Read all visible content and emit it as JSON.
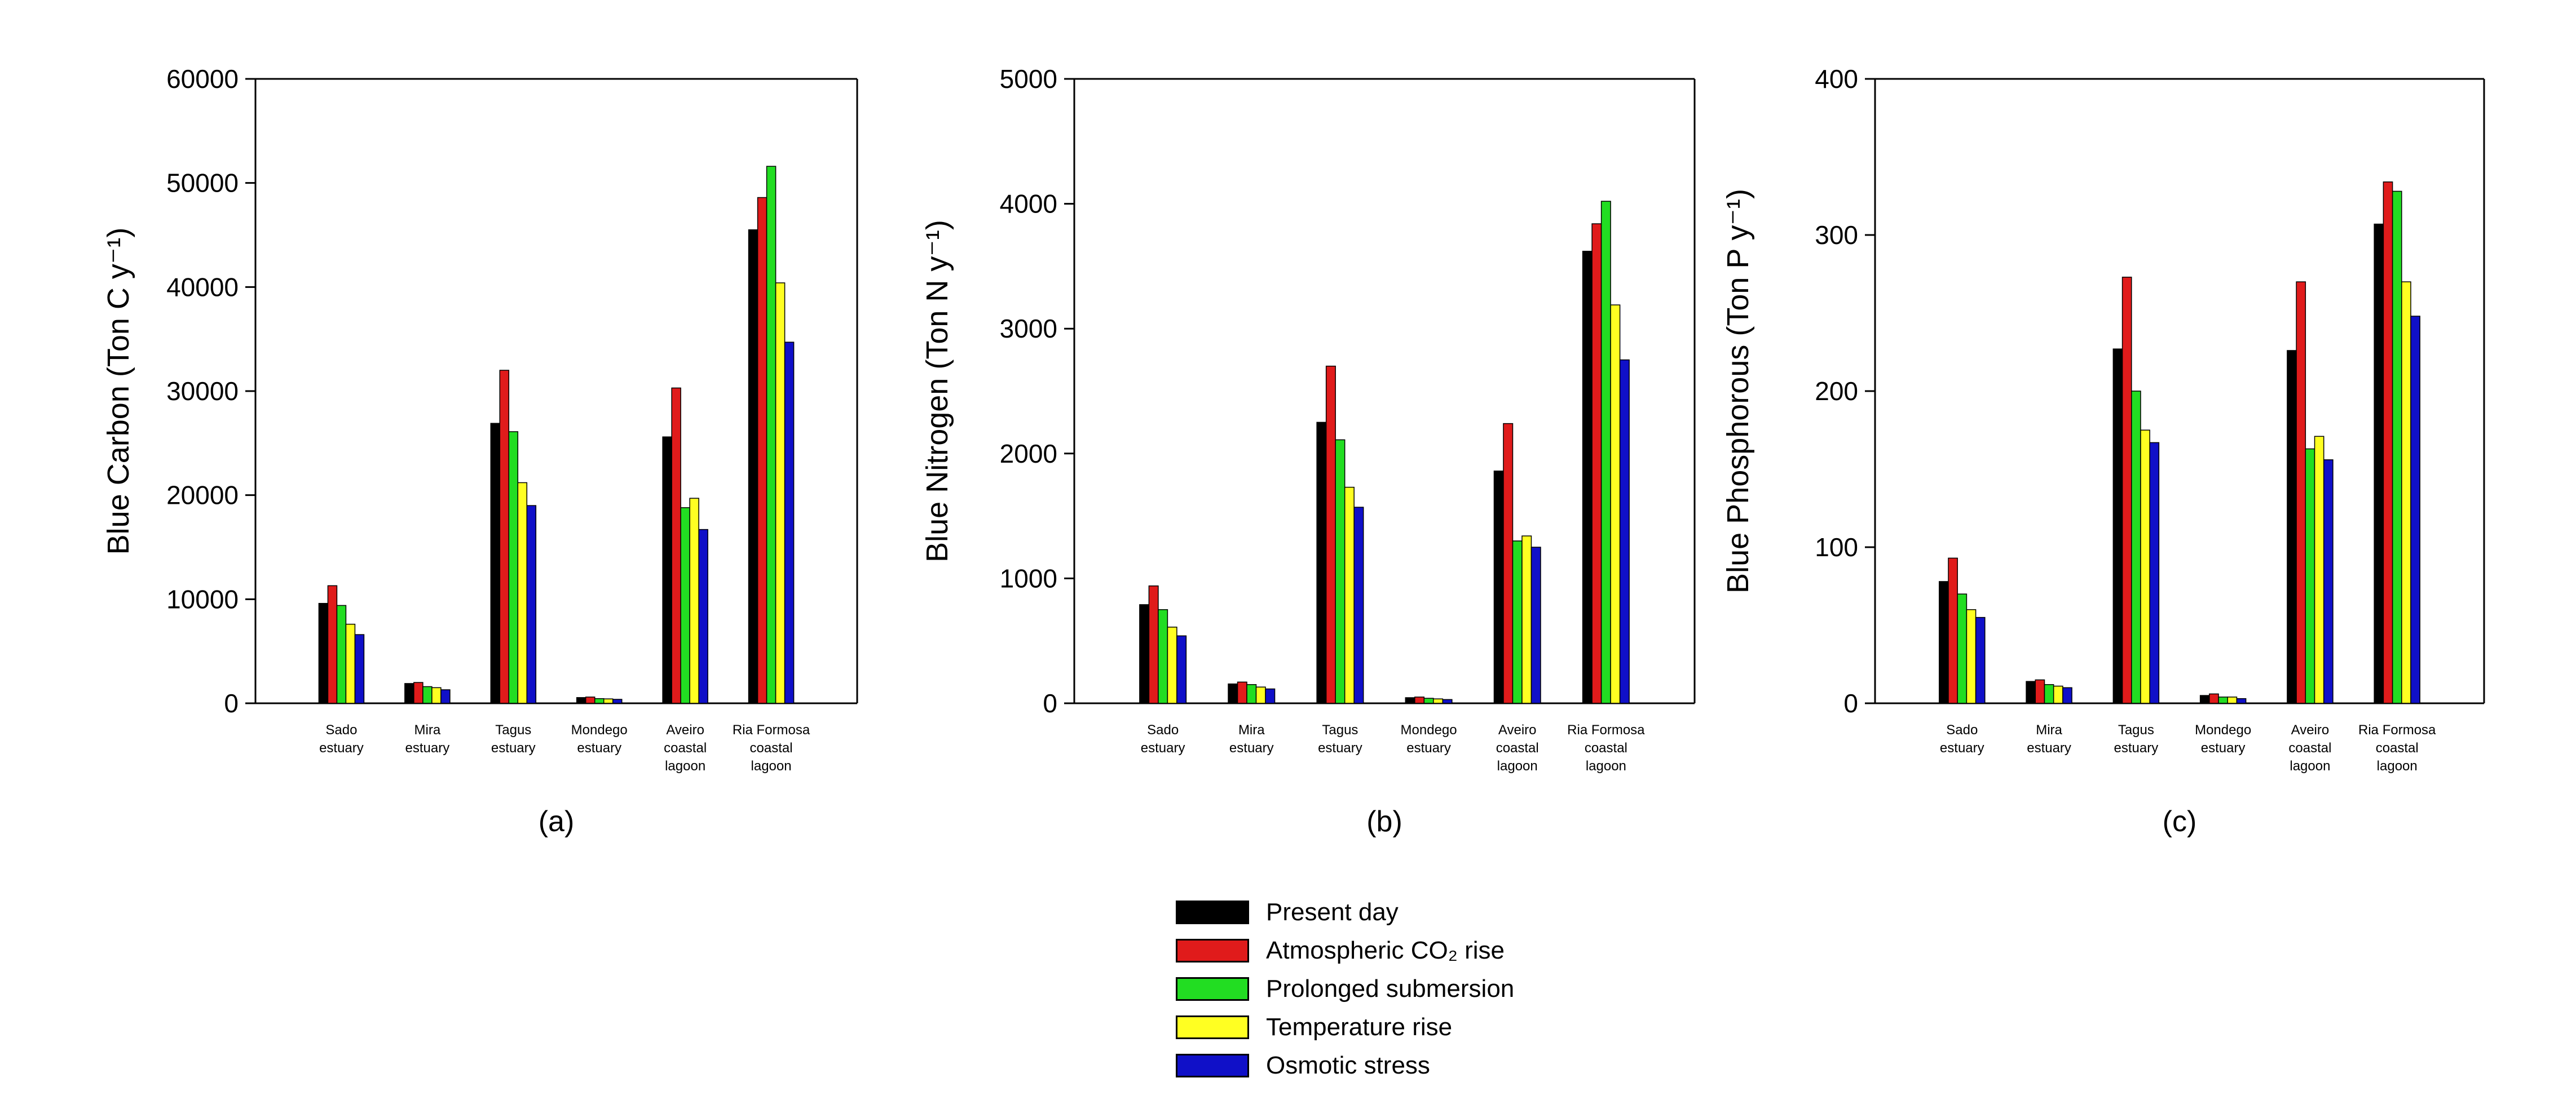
{
  "colors": {
    "series": [
      "#000000",
      "#e01b1b",
      "#22dd22",
      "#ffff22",
      "#1010c8"
    ]
  },
  "legend": {
    "items": [
      "Present day",
      "Atmospheric CO₂ rise",
      "Prolonged submersion",
      "Temperature rise",
      "Osmotic stress"
    ]
  },
  "chart_data": [
    {
      "type": "bar",
      "panel_label": "(a)",
      "ylabel": "Blue Carbon (Ton C y⁻¹)",
      "ylim": [
        0,
        60000
      ],
      "yticks": [
        0,
        10000,
        20000,
        30000,
        40000,
        50000,
        60000
      ],
      "yticklabels": [
        "0",
        "10000",
        "20000",
        "30000",
        "40000",
        "50000",
        "60000"
      ],
      "categories": [
        [
          "Sado",
          "estuary"
        ],
        [
          "Mira",
          "estuary"
        ],
        [
          "Tagus",
          "estuary"
        ],
        [
          "Mondego",
          "estuary"
        ],
        [
          "Aveiro",
          "coastal",
          "lagoon"
        ],
        [
          "Ria Formosa",
          "coastal",
          "lagoon"
        ]
      ],
      "series": [
        {
          "name": "Present day",
          "values": [
            9600,
            1900,
            26900,
            550,
            25600,
            45500
          ]
        },
        {
          "name": "Atmospheric CO2 rise",
          "values": [
            11300,
            2000,
            32000,
            600,
            30300,
            48600
          ]
        },
        {
          "name": "Prolonged submersion",
          "values": [
            9400,
            1600,
            26100,
            450,
            18800,
            51600
          ]
        },
        {
          "name": "Temperature rise",
          "values": [
            7600,
            1500,
            21200,
            420,
            19700,
            40400
          ]
        },
        {
          "name": "Osmotic stress",
          "values": [
            6600,
            1300,
            19000,
            380,
            16700,
            34700
          ]
        }
      ]
    },
    {
      "type": "bar",
      "panel_label": "(b)",
      "ylabel": "Blue Nitrogen (Ton N y⁻¹)",
      "ylim": [
        0,
        5000
      ],
      "yticks": [
        0,
        1000,
        2000,
        3000,
        4000,
        5000
      ],
      "yticklabels": [
        "0",
        "1000",
        "2000",
        "3000",
        "4000",
        "5000"
      ],
      "categories": [
        [
          "Sado",
          "estuary"
        ],
        [
          "Mira",
          "estuary"
        ],
        [
          "Tagus",
          "estuary"
        ],
        [
          "Mondego",
          "estuary"
        ],
        [
          "Aveiro",
          "coastal",
          "lagoon"
        ],
        [
          "Ria Formosa",
          "coastal",
          "lagoon"
        ]
      ],
      "series": [
        {
          "name": "Present day",
          "values": [
            790,
            155,
            2250,
            45,
            1860,
            3620
          ]
        },
        {
          "name": "Atmospheric CO2 rise",
          "values": [
            940,
            170,
            2700,
            50,
            2240,
            3840
          ]
        },
        {
          "name": "Prolonged submersion",
          "values": [
            750,
            150,
            2110,
            40,
            1300,
            4020
          ]
        },
        {
          "name": "Temperature rise",
          "values": [
            610,
            130,
            1730,
            35,
            1340,
            3190
          ]
        },
        {
          "name": "Osmotic stress",
          "values": [
            540,
            115,
            1570,
            30,
            1250,
            2750
          ]
        }
      ]
    },
    {
      "type": "bar",
      "panel_label": "(c)",
      "ylabel": "Blue Phosphorous (Ton P y⁻¹)",
      "ylim": [
        0,
        400
      ],
      "yticks": [
        0,
        100,
        200,
        300,
        400
      ],
      "yticklabels": [
        "0",
        "100",
        "200",
        "300",
        "400"
      ],
      "categories": [
        [
          "Sado",
          "estuary"
        ],
        [
          "Mira",
          "estuary"
        ],
        [
          "Tagus",
          "estuary"
        ],
        [
          "Mondego",
          "estuary"
        ],
        [
          "Aveiro",
          "coastal",
          "lagoon"
        ],
        [
          "Ria Formosa",
          "coastal",
          "lagoon"
        ]
      ],
      "series": [
        {
          "name": "Present day",
          "values": [
            78,
            14,
            227,
            5,
            226,
            307
          ]
        },
        {
          "name": "Atmospheric CO2 rise",
          "values": [
            93,
            15,
            273,
            6,
            270,
            334
          ]
        },
        {
          "name": "Prolonged submersion",
          "values": [
            70,
            12,
            200,
            4,
            163,
            328
          ]
        },
        {
          "name": "Temperature rise",
          "values": [
            60,
            11,
            175,
            4,
            171,
            270
          ]
        },
        {
          "name": "Osmotic stress",
          "values": [
            55,
            10,
            167,
            3,
            156,
            248
          ]
        }
      ]
    }
  ]
}
